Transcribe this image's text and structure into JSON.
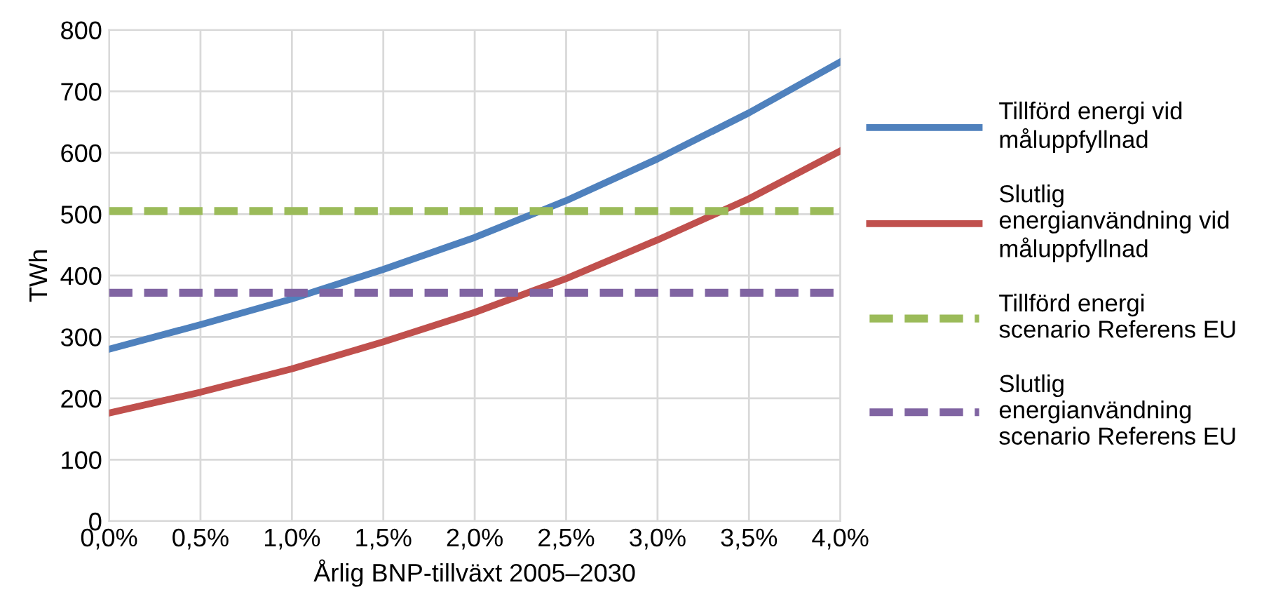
{
  "chart_data": {
    "type": "line",
    "xlabel": "Årlig BNP-tillväxt 2005–2030",
    "ylabel": "TWh",
    "x": [
      0,
      0.5,
      1.0,
      1.5,
      2.0,
      2.5,
      3.0,
      3.5,
      4.0
    ],
    "xlim": [
      0,
      4
    ],
    "xticks": [
      {
        "value": 0,
        "label": "0,0%"
      },
      {
        "value": 0.5,
        "label": "0,5%"
      },
      {
        "value": 1,
        "label": "1,0%"
      },
      {
        "value": 1.5,
        "label": "1,5%"
      },
      {
        "value": 2,
        "label": "2,0%"
      },
      {
        "value": 2.5,
        "label": "2,5%"
      },
      {
        "value": 3,
        "label": "3,0%"
      },
      {
        "value": 3.5,
        "label": "3,5%"
      },
      {
        "value": 4,
        "label": "4,0%"
      }
    ],
    "ylim": [
      0,
      800
    ],
    "yticks": [
      0,
      100,
      200,
      300,
      400,
      500,
      600,
      700,
      800
    ],
    "grid": true,
    "legend": "right",
    "marker": "none",
    "series": [
      {
        "name": "Tillförd energi vid måluppfyllnad",
        "color": "#4f81bd",
        "line_style": "solid",
        "values": [
          280,
          320,
          362,
          410,
          462,
          522,
          590,
          665,
          748
        ]
      },
      {
        "name": "Slutlig energianvändning vid måluppfyllnad",
        "color": "#c0504d",
        "line_style": "solid",
        "values": [
          176,
          210,
          248,
          292,
          340,
          395,
          458,
          525,
          603
        ]
      },
      {
        "name": "Tillförd energi scenario Referens EU",
        "color": "#9bbb59",
        "line_style": "dashed",
        "values": [
          505,
          505,
          505,
          505,
          505,
          505,
          505,
          505,
          505
        ]
      },
      {
        "name": "Slutlig energianvändning scenario Referens EU",
        "color": "#8064a2",
        "line_style": "dashed",
        "values": [
          372,
          372,
          372,
          372,
          372,
          372,
          372,
          372,
          372
        ]
      }
    ]
  }
}
